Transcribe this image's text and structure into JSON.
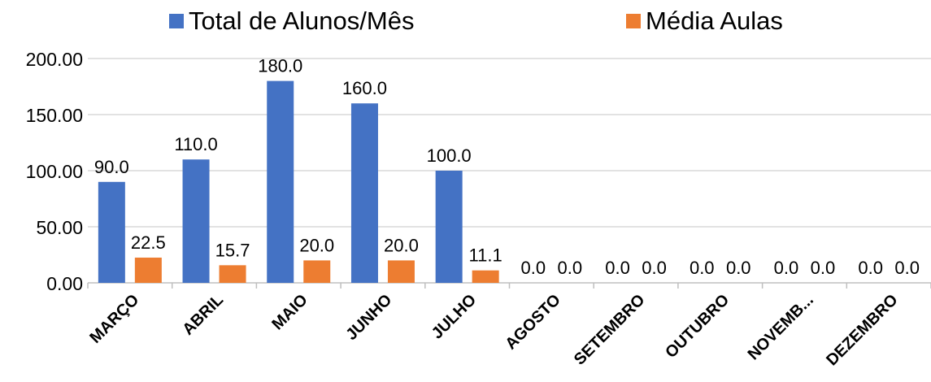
{
  "chart_data": {
    "type": "bar",
    "categories": [
      "MARÇO",
      "ABRIL",
      "MAIO",
      "JUNHO",
      "JULHO",
      "AGOSTO",
      "SETEMBRO",
      "OUTUBRO",
      "NOVEMB...",
      "DEZEMBRO"
    ],
    "series": [
      {
        "name": "Total de Alunos/Mês",
        "color": "#4472C4",
        "values": [
          90.0,
          110.0,
          180.0,
          160.0,
          100.0,
          0.0,
          0.0,
          0.0,
          0.0,
          0.0
        ],
        "labels": [
          "90.0",
          "110.0",
          "180.0",
          "160.0",
          "100.0",
          "0.0",
          "0.0",
          "0.0",
          "0.0",
          "0.0"
        ]
      },
      {
        "name": "Média Aulas",
        "color": "#ED7D31",
        "values": [
          22.5,
          15.7,
          20.0,
          20.0,
          11.1,
          0.0,
          0.0,
          0.0,
          0.0,
          0.0
        ],
        "labels": [
          "22.5",
          "15.7",
          "20.0",
          "20.0",
          "11.1",
          "0.0",
          "0.0",
          "0.0",
          "0.0",
          "0.0"
        ]
      }
    ],
    "y_ticks": [
      "0.00",
      "50.00",
      "100.00",
      "150.00",
      "200.00"
    ],
    "ylim": [
      0,
      200
    ],
    "legend": "top",
    "grid": true,
    "gridline_color": "#D9D9D9"
  }
}
